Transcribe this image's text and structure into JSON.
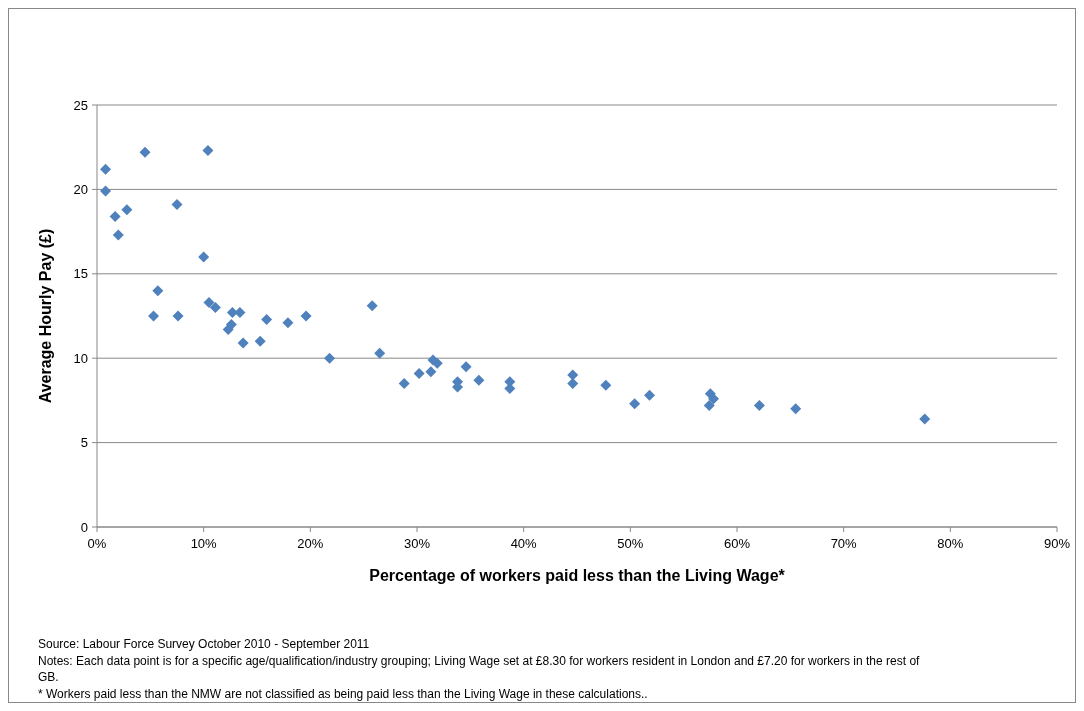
{
  "chart_data": {
    "type": "scatter",
    "xlabel": "Percentage of workers paid less than the Living Wage*",
    "ylabel": "Average Hourly Pay (£)",
    "x": [
      0.8,
      0.8,
      1.7,
      2.0,
      2.8,
      4.5,
      5.3,
      5.7,
      7.5,
      7.6,
      10.0,
      10.4,
      10.5,
      11.1,
      12.3,
      12.6,
      12.7,
      13.4,
      13.7,
      15.3,
      15.9,
      17.9,
      19.6,
      21.8,
      25.8,
      26.5,
      28.8,
      30.2,
      31.3,
      31.5,
      31.9,
      33.8,
      33.8,
      34.6,
      35.8,
      38.7,
      38.7,
      44.6,
      44.6,
      47.7,
      50.4,
      51.8,
      57.5,
      57.4,
      57.8,
      62.1,
      65.5,
      77.6
    ],
    "values": [
      21.2,
      19.9,
      18.4,
      17.3,
      18.8,
      22.2,
      12.5,
      14.0,
      19.1,
      12.5,
      16.0,
      22.3,
      13.3,
      13.0,
      11.7,
      12.0,
      12.7,
      12.7,
      10.9,
      11.0,
      12.3,
      12.1,
      12.5,
      10.0,
      13.1,
      10.3,
      8.5,
      9.1,
      9.2,
      9.9,
      9.7,
      8.6,
      8.3,
      9.5,
      8.7,
      8.6,
      8.2,
      9.0,
      8.5,
      8.4,
      7.3,
      7.8,
      7.9,
      7.2,
      7.6,
      7.2,
      7.0,
      6.4
    ],
    "color": "#4f81bd",
    "marker": "diamond",
    "grid": "y",
    "xlim": [
      0,
      90
    ],
    "xticks": [
      {
        "value": 0,
        "label": "0%"
      },
      {
        "value": 10,
        "label": "10%"
      },
      {
        "value": 20,
        "label": "20%"
      },
      {
        "value": 30,
        "label": "30%"
      },
      {
        "value": 40,
        "label": "40%"
      },
      {
        "value": 50,
        "label": "50%"
      },
      {
        "value": 60,
        "label": "60%"
      },
      {
        "value": 70,
        "label": "70%"
      },
      {
        "value": 80,
        "label": "80%"
      },
      {
        "value": 90,
        "label": "90%"
      }
    ],
    "ylim": [
      0,
      25
    ],
    "yticks": [
      0,
      5,
      10,
      15,
      20,
      25
    ],
    "annotations": [
      "Source: Labour Force Survey October 2010 - September 2011",
      "Notes: Each data point is for a specific age/qualification/industry grouping; Living Wage set at £8.30 for workers resident in London and £7.20 for workers in the rest of GB.",
      "* Workers paid less than the NMW are not classified as being paid less than the Living Wage in these calculations.."
    ]
  }
}
